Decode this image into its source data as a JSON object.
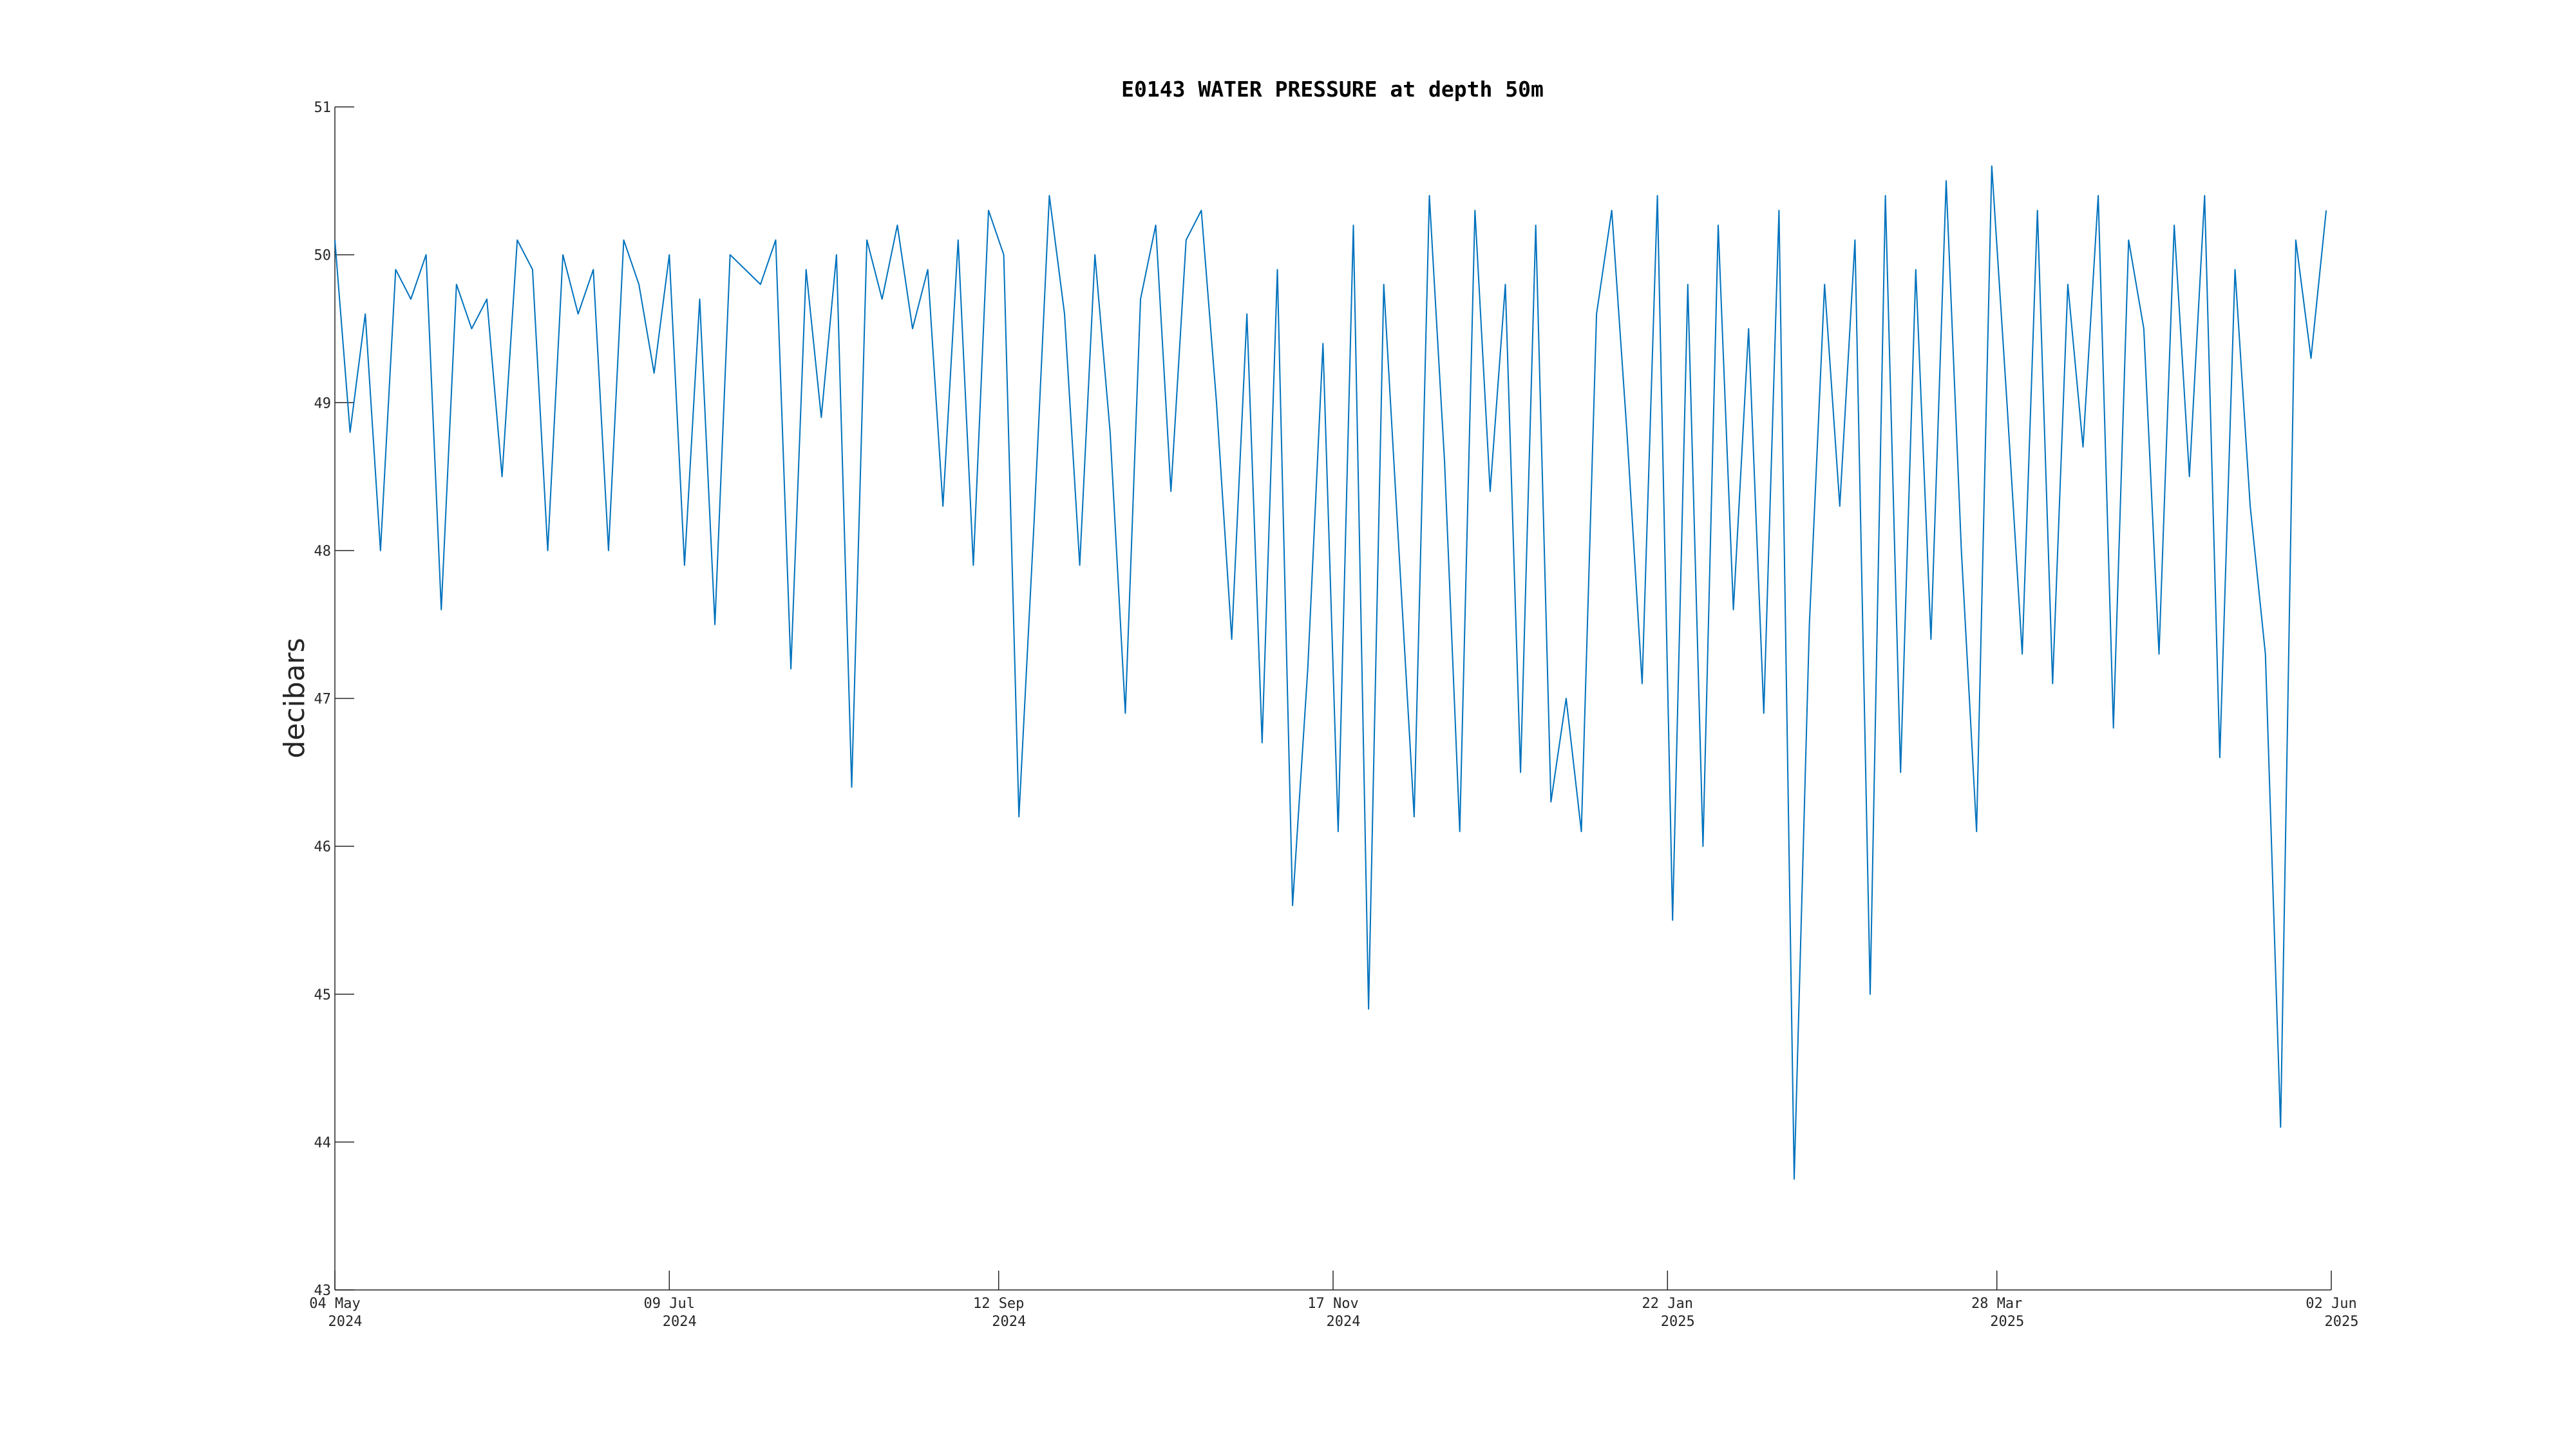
{
  "chart_data": {
    "type": "line",
    "title": "E0143 WATER PRESSURE at depth 50m",
    "ylabel": "decibars",
    "x": [
      "2024-05-04",
      "2024-05-07",
      "2024-05-10",
      "2024-05-13",
      "2024-05-16",
      "2024-05-19",
      "2024-05-22",
      "2024-05-25",
      "2024-05-28",
      "2024-05-31",
      "2024-06-03",
      "2024-06-06",
      "2024-06-09",
      "2024-06-12",
      "2024-06-15",
      "2024-06-18",
      "2024-06-21",
      "2024-06-24",
      "2024-06-27",
      "2024-06-30",
      "2024-07-03",
      "2024-07-06",
      "2024-07-09",
      "2024-07-12",
      "2024-07-15",
      "2024-07-18",
      "2024-07-21",
      "2024-07-24",
      "2024-07-27",
      "2024-07-30",
      "2024-08-02",
      "2024-08-05",
      "2024-08-08",
      "2024-08-11",
      "2024-08-14",
      "2024-08-17",
      "2024-08-20",
      "2024-08-23",
      "2024-08-26",
      "2024-08-29",
      "2024-09-01",
      "2024-09-04",
      "2024-09-07",
      "2024-09-10",
      "2024-09-13",
      "2024-09-16",
      "2024-09-19",
      "2024-09-22",
      "2024-09-25",
      "2024-09-28",
      "2024-10-01",
      "2024-10-04",
      "2024-10-07",
      "2024-10-10",
      "2024-10-13",
      "2024-10-16",
      "2024-10-19",
      "2024-10-22",
      "2024-10-25",
      "2024-10-28",
      "2024-10-31",
      "2024-11-03",
      "2024-11-06",
      "2024-11-09",
      "2024-11-12",
      "2024-11-15",
      "2024-11-18",
      "2024-11-21",
      "2024-11-24",
      "2024-11-27",
      "2024-11-30",
      "2024-12-03",
      "2024-12-06",
      "2024-12-09",
      "2024-12-12",
      "2024-12-15",
      "2024-12-18",
      "2024-12-21",
      "2024-12-24",
      "2024-12-27",
      "2024-12-30",
      "2025-01-02",
      "2025-01-05",
      "2025-01-08",
      "2025-01-11",
      "2025-01-14",
      "2025-01-17",
      "2025-01-20",
      "2025-01-23",
      "2025-01-26",
      "2025-01-29",
      "2025-02-01",
      "2025-02-04",
      "2025-02-07",
      "2025-02-10",
      "2025-02-13",
      "2025-02-16",
      "2025-02-19",
      "2025-02-22",
      "2025-02-25",
      "2025-02-28",
      "2025-03-03",
      "2025-03-06",
      "2025-03-09",
      "2025-03-12",
      "2025-03-15",
      "2025-03-18",
      "2025-03-21",
      "2025-03-24",
      "2025-03-27",
      "2025-03-30",
      "2025-04-02",
      "2025-04-05",
      "2025-04-08",
      "2025-04-11",
      "2025-04-14",
      "2025-04-17",
      "2025-04-20",
      "2025-04-23",
      "2025-04-26",
      "2025-04-29",
      "2025-05-02",
      "2025-05-05",
      "2025-05-08",
      "2025-05-11",
      "2025-05-14",
      "2025-05-17",
      "2025-05-20",
      "2025-05-23",
      "2025-05-26",
      "2025-05-29",
      "2025-06-01"
    ],
    "series": [
      {
        "name": "E0143",
        "color": "#0072bd",
        "values": [
          50.1,
          48.8,
          49.6,
          48.0,
          49.9,
          49.7,
          50.0,
          47.6,
          49.8,
          49.5,
          49.7,
          48.5,
          50.1,
          49.9,
          48.0,
          50.0,
          49.6,
          49.9,
          48.0,
          50.1,
          49.8,
          49.2,
          50.0,
          47.9,
          49.7,
          47.5,
          50.0,
          49.9,
          49.8,
          50.1,
          47.2,
          49.9,
          48.9,
          50.0,
          46.4,
          50.1,
          49.7,
          50.2,
          49.5,
          49.9,
          48.3,
          50.1,
          47.9,
          50.3,
          50.0,
          46.2,
          48.2,
          50.4,
          49.6,
          47.9,
          50.0,
          48.8,
          46.9,
          49.7,
          50.2,
          48.4,
          50.1,
          50.3,
          49.0,
          47.4,
          49.6,
          46.7,
          49.9,
          45.6,
          47.2,
          49.4,
          46.1,
          50.2,
          44.9,
          49.8,
          48.0,
          46.2,
          50.4,
          48.6,
          46.1,
          50.3,
          48.4,
          49.8,
          46.5,
          50.2,
          46.3,
          47.0,
          46.1,
          49.6,
          50.3,
          48.8,
          47.1,
          50.4,
          45.5,
          49.8,
          46.0,
          50.2,
          47.6,
          49.5,
          46.9,
          50.3,
          43.75,
          47.5,
          49.8,
          48.3,
          50.1,
          45.0,
          50.4,
          46.5,
          49.9,
          47.4,
          50.5,
          48.0,
          46.1,
          50.6,
          49.0,
          47.3,
          50.3,
          47.1,
          49.8,
          48.7,
          50.4,
          46.8,
          50.1,
          49.5,
          47.3,
          50.2,
          48.5,
          50.4,
          46.6,
          49.9,
          48.3,
          47.3,
          44.1,
          50.1,
          49.3,
          50.3
        ]
      }
    ],
    "xlim": [
      "2024-05-04",
      "2025-06-02"
    ],
    "xticks": [
      {
        "value": "2024-05-04",
        "label": "04 May",
        "year": "2024"
      },
      {
        "value": "2024-07-09",
        "label": "09 Jul",
        "year": "2024"
      },
      {
        "value": "2024-09-12",
        "label": "12 Sep",
        "year": "2024"
      },
      {
        "value": "2024-11-17",
        "label": "17 Nov",
        "year": "2024"
      },
      {
        "value": "2025-01-22",
        "label": "22 Jan",
        "year": "2025"
      },
      {
        "value": "2025-03-28",
        "label": "28 Mar",
        "year": "2025"
      },
      {
        "value": "2025-06-02",
        "label": "02 Jun",
        "year": "2025"
      }
    ],
    "ylim": [
      43,
      51
    ],
    "yticks": [
      43,
      44,
      45,
      46,
      47,
      48,
      49,
      50,
      51
    ],
    "grid": false
  }
}
